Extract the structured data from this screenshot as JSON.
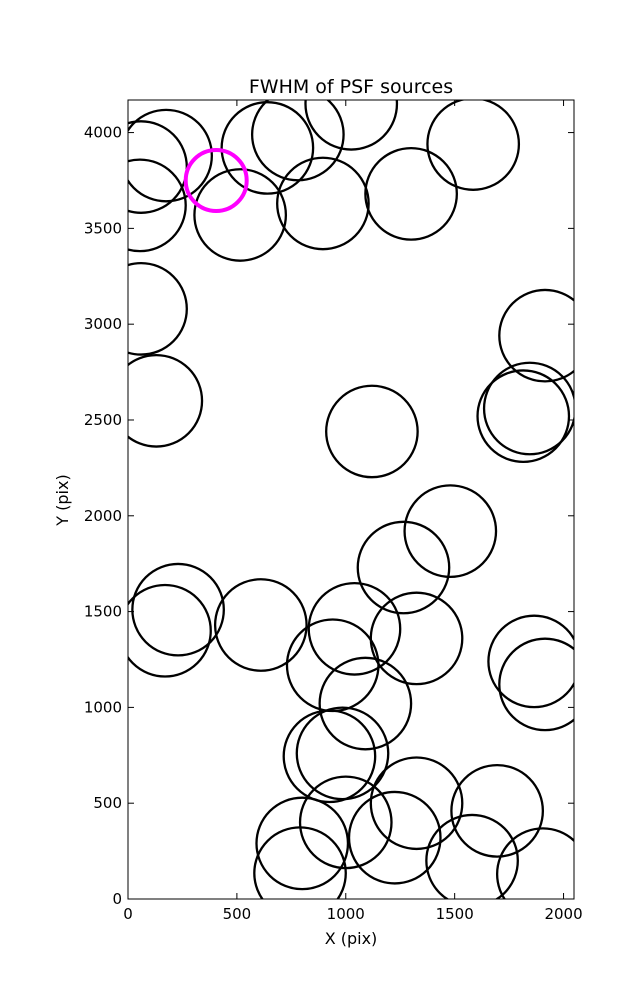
{
  "chart_data": {
    "type": "scatter",
    "title": "FWHM of PSF sources",
    "xlabel": "X (pix)",
    "ylabel": "Y (pix)",
    "xlim": [
      0,
      2048
    ],
    "ylim": [
      0,
      4170
    ],
    "xticks": [
      0,
      500,
      1000,
      1500,
      2000
    ],
    "yticks": [
      0,
      500,
      1000,
      1500,
      2000,
      2500,
      3000,
      3500,
      4000
    ],
    "grid": false,
    "legend": "none",
    "marker": "open circle",
    "marker_radius_units": "pix",
    "series": [
      {
        "color": "#000000",
        "points": [
          {
            "x": 175,
            "y": 3880,
            "r": 210
          },
          {
            "x": 60,
            "y": 3820,
            "r": 210
          },
          {
            "x": 55,
            "y": 3620,
            "r": 210
          },
          {
            "x": 640,
            "y": 3920,
            "r": 210
          },
          {
            "x": 780,
            "y": 3990,
            "r": 210
          },
          {
            "x": 1025,
            "y": 4150,
            "r": 210
          },
          {
            "x": 1585,
            "y": 3940,
            "r": 210
          },
          {
            "x": 515,
            "y": 3570,
            "r": 210
          },
          {
            "x": 895,
            "y": 3630,
            "r": 210
          },
          {
            "x": 1300,
            "y": 3680,
            "r": 210
          },
          {
            "x": 60,
            "y": 3080,
            "r": 210
          },
          {
            "x": 1915,
            "y": 2940,
            "r": 210
          },
          {
            "x": 130,
            "y": 2600,
            "r": 210
          },
          {
            "x": 1845,
            "y": 2560,
            "r": 210
          },
          {
            "x": 1815,
            "y": 2520,
            "r": 210
          },
          {
            "x": 1120,
            "y": 2440,
            "r": 210
          },
          {
            "x": 1480,
            "y": 1920,
            "r": 210
          },
          {
            "x": 1265,
            "y": 1730,
            "r": 210
          },
          {
            "x": 230,
            "y": 1510,
            "r": 210
          },
          {
            "x": 170,
            "y": 1400,
            "r": 210
          },
          {
            "x": 610,
            "y": 1430,
            "r": 210
          },
          {
            "x": 1040,
            "y": 1410,
            "r": 210
          },
          {
            "x": 1325,
            "y": 1360,
            "r": 210
          },
          {
            "x": 940,
            "y": 1220,
            "r": 210
          },
          {
            "x": 1865,
            "y": 1240,
            "r": 210
          },
          {
            "x": 1915,
            "y": 1120,
            "r": 210
          },
          {
            "x": 1090,
            "y": 1020,
            "r": 210
          },
          {
            "x": 925,
            "y": 745,
            "r": 210
          },
          {
            "x": 985,
            "y": 760,
            "r": 210
          },
          {
            "x": 1325,
            "y": 500,
            "r": 210
          },
          {
            "x": 1695,
            "y": 460,
            "r": 210
          },
          {
            "x": 1000,
            "y": 400,
            "r": 210
          },
          {
            "x": 1225,
            "y": 320,
            "r": 210
          },
          {
            "x": 800,
            "y": 290,
            "r": 210
          },
          {
            "x": 1580,
            "y": 200,
            "r": 210
          },
          {
            "x": 790,
            "y": 135,
            "r": 210
          },
          {
            "x": 1905,
            "y": 130,
            "r": 210
          }
        ]
      },
      {
        "color": "#ff00ff",
        "points": [
          {
            "x": 405,
            "y": 3750,
            "r": 140
          }
        ]
      }
    ]
  }
}
